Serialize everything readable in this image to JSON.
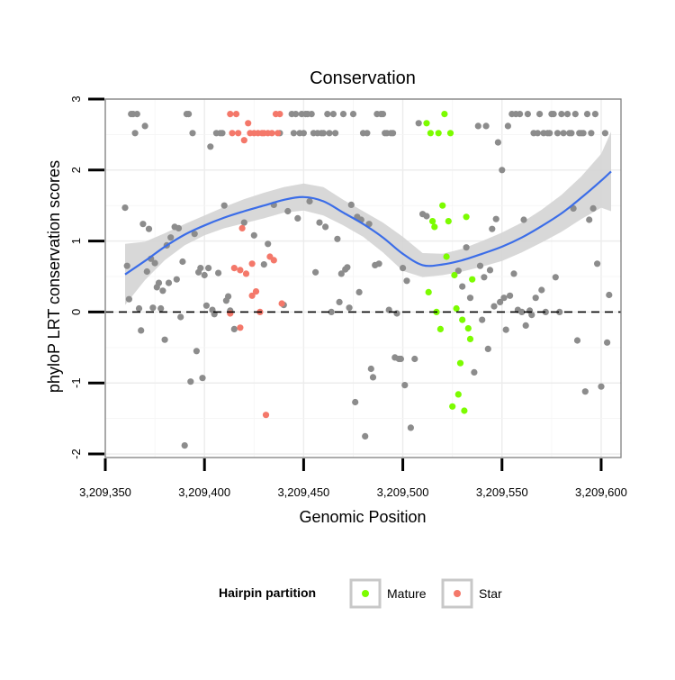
{
  "chart_data": {
    "type": "scatter",
    "title": "Conservation",
    "xlabel": "Genomic Position",
    "ylabel": "phyloP LRT conservation scores",
    "xlim": [
      3209350,
      3209610
    ],
    "ylim": [
      -2.05,
      3.0
    ],
    "x_ticks": [
      3209350,
      3209400,
      3209450,
      3209500,
      3209550,
      3209600
    ],
    "x_tick_labels": [
      "3,209,350",
      "3,209,400",
      "3,209,450",
      "3,209,500",
      "3,209,550",
      "3,209,600"
    ],
    "y_ticks": [
      -2,
      -1,
      0,
      1,
      2,
      3
    ],
    "y_tick_labels": [
      "-2",
      "-1",
      "0",
      "1",
      "2",
      "3"
    ],
    "grid": true,
    "reference_line": {
      "y": 0,
      "style": "dashed",
      "color": "#000000"
    },
    "legend": {
      "title": "Hairpin partition",
      "placement": "bottom",
      "entries": [
        {
          "label": "Mature",
          "color": "#7cfc00"
        },
        {
          "label": "Star",
          "color": "#f4786a"
        }
      ]
    },
    "colors": {
      "other": "#8c8c8c",
      "mature": "#7cfc00",
      "star": "#f4786a",
      "smooth_line": "#3b6de8",
      "smooth_band": "#d4d4d4"
    },
    "series": [
      {
        "name": "Other",
        "color": "#8c8c8c",
        "points": [
          [
            3209360,
            1.47
          ],
          [
            3209361,
            0.65
          ],
          [
            3209362,
            0.18
          ],
          [
            3209363,
            2.79
          ],
          [
            3209364,
            2.79
          ],
          [
            3209365,
            2.52
          ],
          [
            3209366,
            2.79
          ],
          [
            3209367,
            0.05
          ],
          [
            3209368,
            -0.26
          ],
          [
            3209369,
            1.24
          ],
          [
            3209370,
            2.62
          ],
          [
            3209371,
            0.57
          ],
          [
            3209372,
            1.17
          ],
          [
            3209373,
            0.75
          ],
          [
            3209374,
            0.06
          ],
          [
            3209375,
            0.69
          ],
          [
            3209376,
            0.35
          ],
          [
            3209377,
            0.41
          ],
          [
            3209378,
            0.05
          ],
          [
            3209379,
            0.3
          ],
          [
            3209380,
            -0.39
          ],
          [
            3209381,
            0.94
          ],
          [
            3209382,
            0.41
          ],
          [
            3209383,
            1.05
          ],
          [
            3209385,
            1.2
          ],
          [
            3209386,
            0.46
          ],
          [
            3209387,
            1.18
          ],
          [
            3209388,
            -0.07
          ],
          [
            3209389,
            0.71
          ],
          [
            3209390,
            -1.88
          ],
          [
            3209391,
            2.79
          ],
          [
            3209392,
            2.79
          ],
          [
            3209393,
            -0.98
          ],
          [
            3209394,
            2.52
          ],
          [
            3209395,
            1.1
          ],
          [
            3209396,
            -0.55
          ],
          [
            3209397,
            0.56
          ],
          [
            3209398,
            0.62
          ],
          [
            3209399,
            -0.93
          ],
          [
            3209400,
            0.52
          ],
          [
            3209401,
            0.09
          ],
          [
            3209402,
            0.62
          ],
          [
            3209403,
            2.33
          ],
          [
            3209404,
            0.03
          ],
          [
            3209405,
            -0.03
          ],
          [
            3209406,
            2.52
          ],
          [
            3209407,
            0.55
          ],
          [
            3209408,
            2.52
          ],
          [
            3209409,
            2.52
          ],
          [
            3209410,
            1.5
          ],
          [
            3209411,
            0.16
          ],
          [
            3209412,
            0.22
          ],
          [
            3209413,
            0.02
          ],
          [
            3209415,
            -0.24
          ],
          [
            3209420,
            1.26
          ],
          [
            3209425,
            1.08
          ],
          [
            3209430,
            0.67
          ],
          [
            3209432,
            0.96
          ],
          [
            3209435,
            1.51
          ],
          [
            3209438,
            2.52
          ],
          [
            3209440,
            0.1
          ],
          [
            3209442,
            1.42
          ],
          [
            3209444,
            2.79
          ],
          [
            3209445,
            2.52
          ],
          [
            3209446,
            2.79
          ],
          [
            3209447,
            1.32
          ],
          [
            3209448,
            2.52
          ],
          [
            3209449,
            2.79
          ],
          [
            3209450,
            2.52
          ],
          [
            3209451,
            2.79
          ],
          [
            3209452,
            2.79
          ],
          [
            3209453,
            1.56
          ],
          [
            3209454,
            2.79
          ],
          [
            3209455,
            2.52
          ],
          [
            3209456,
            0.56
          ],
          [
            3209457,
            2.52
          ],
          [
            3209458,
            1.26
          ],
          [
            3209459,
            2.52
          ],
          [
            3209460,
            2.52
          ],
          [
            3209461,
            1.2
          ],
          [
            3209462,
            2.79
          ],
          [
            3209463,
            2.52
          ],
          [
            3209464,
            0.0
          ],
          [
            3209465,
            2.79
          ],
          [
            3209466,
            2.52
          ],
          [
            3209467,
            1.03
          ],
          [
            3209468,
            0.14
          ],
          [
            3209469,
            0.54
          ],
          [
            3209470,
            2.79
          ],
          [
            3209471,
            0.6
          ],
          [
            3209472,
            0.63
          ],
          [
            3209473,
            0.06
          ],
          [
            3209474,
            1.51
          ],
          [
            3209475,
            2.79
          ],
          [
            3209476,
            -1.27
          ],
          [
            3209477,
            1.34
          ],
          [
            3209478,
            0.28
          ],
          [
            3209479,
            1.3
          ],
          [
            3209480,
            2.52
          ],
          [
            3209481,
            -1.75
          ],
          [
            3209482,
            2.52
          ],
          [
            3209483,
            1.24
          ],
          [
            3209484,
            -0.8
          ],
          [
            3209485,
            -0.92
          ],
          [
            3209486,
            0.66
          ],
          [
            3209487,
            2.79
          ],
          [
            3209488,
            0.68
          ],
          [
            3209489,
            2.79
          ],
          [
            3209490,
            2.79
          ],
          [
            3209491,
            2.52
          ],
          [
            3209492,
            2.52
          ],
          [
            3209493,
            0.03
          ],
          [
            3209494,
            2.52
          ],
          [
            3209495,
            2.52
          ],
          [
            3209496,
            -0.64
          ],
          [
            3209497,
            -0.02
          ],
          [
            3209498,
            -0.66
          ],
          [
            3209499,
            -0.66
          ],
          [
            3209500,
            0.62
          ],
          [
            3209501,
            -1.03
          ],
          [
            3209502,
            0.44
          ],
          [
            3209504,
            -1.63
          ],
          [
            3209506,
            -0.66
          ],
          [
            3209508,
            2.66
          ],
          [
            3209510,
            1.38
          ],
          [
            3209512,
            1.35
          ],
          [
            3209528,
            0.58
          ],
          [
            3209530,
            0.36
          ],
          [
            3209532,
            0.91
          ],
          [
            3209534,
            0.2
          ],
          [
            3209536,
            -0.85
          ],
          [
            3209538,
            2.62
          ],
          [
            3209539,
            0.65
          ],
          [
            3209540,
            -0.11
          ],
          [
            3209541,
            0.49
          ],
          [
            3209542,
            2.62
          ],
          [
            3209543,
            -0.52
          ],
          [
            3209544,
            0.59
          ],
          [
            3209545,
            1.17
          ],
          [
            3209546,
            0.08
          ],
          [
            3209547,
            1.31
          ],
          [
            3209548,
            2.39
          ],
          [
            3209549,
            0.14
          ],
          [
            3209550,
            2.0
          ],
          [
            3209551,
            0.2
          ],
          [
            3209552,
            -0.25
          ],
          [
            3209553,
            2.62
          ],
          [
            3209554,
            0.23
          ],
          [
            3209555,
            2.79
          ],
          [
            3209556,
            0.54
          ],
          [
            3209557,
            2.79
          ],
          [
            3209558,
            0.03
          ],
          [
            3209559,
            2.79
          ],
          [
            3209560,
            0.0
          ],
          [
            3209561,
            1.3
          ],
          [
            3209562,
            -0.19
          ],
          [
            3209563,
            2.79
          ],
          [
            3209564,
            0.02
          ],
          [
            3209565,
            -0.04
          ],
          [
            3209566,
            2.52
          ],
          [
            3209567,
            0.2
          ],
          [
            3209568,
            2.52
          ],
          [
            3209569,
            2.79
          ],
          [
            3209570,
            0.31
          ],
          [
            3209571,
            2.52
          ],
          [
            3209572,
            0.0
          ],
          [
            3209573,
            2.52
          ],
          [
            3209574,
            2.52
          ],
          [
            3209575,
            2.79
          ],
          [
            3209576,
            2.79
          ],
          [
            3209577,
            0.49
          ],
          [
            3209578,
            2.52
          ],
          [
            3209579,
            0.0
          ],
          [
            3209580,
            2.79
          ],
          [
            3209581,
            2.52
          ],
          [
            3209583,
            2.79
          ],
          [
            3209584,
            2.52
          ],
          [
            3209585,
            2.52
          ],
          [
            3209586,
            1.46
          ],
          [
            3209587,
            2.79
          ],
          [
            3209588,
            -0.4
          ],
          [
            3209589,
            2.52
          ],
          [
            3209590,
            2.52
          ],
          [
            3209591,
            2.52
          ],
          [
            3209592,
            -1.12
          ],
          [
            3209593,
            2.79
          ],
          [
            3209594,
            1.3
          ],
          [
            3209595,
            2.52
          ],
          [
            3209596,
            1.46
          ],
          [
            3209597,
            2.79
          ],
          [
            3209598,
            0.68
          ],
          [
            3209600,
            -1.05
          ],
          [
            3209602,
            2.52
          ],
          [
            3209603,
            -0.43
          ],
          [
            3209604,
            0.24
          ]
        ]
      },
      {
        "name": "Mature",
        "color": "#7cfc00",
        "points": [
          [
            3209512,
            2.66
          ],
          [
            3209513,
            0.28
          ],
          [
            3209514,
            2.52
          ],
          [
            3209515,
            1.28
          ],
          [
            3209516,
            1.2
          ],
          [
            3209517,
            0.0
          ],
          [
            3209518,
            2.52
          ],
          [
            3209519,
            -0.24
          ],
          [
            3209520,
            1.5
          ],
          [
            3209521,
            2.79
          ],
          [
            3209522,
            0.78
          ],
          [
            3209523,
            1.28
          ],
          [
            3209524,
            2.52
          ],
          [
            3209525,
            -1.33
          ],
          [
            3209526,
            0.52
          ],
          [
            3209527,
            0.05
          ],
          [
            3209528,
            -1.16
          ],
          [
            3209529,
            -0.72
          ],
          [
            3209530,
            -0.11
          ],
          [
            3209531,
            -1.39
          ],
          [
            3209532,
            1.34
          ],
          [
            3209533,
            -0.23
          ],
          [
            3209534,
            -0.38
          ],
          [
            3209535,
            0.46
          ]
        ]
      },
      {
        "name": "Star",
        "color": "#f4786a",
        "points": [
          [
            3209413,
            2.79
          ],
          [
            3209414,
            2.52
          ],
          [
            3209415,
            0.62
          ],
          [
            3209416,
            2.79
          ],
          [
            3209417,
            2.52
          ],
          [
            3209418,
            0.59
          ],
          [
            3209419,
            1.18
          ],
          [
            3209420,
            2.42
          ],
          [
            3209421,
            0.54
          ],
          [
            3209422,
            2.66
          ],
          [
            3209423,
            2.52
          ],
          [
            3209424,
            0.23
          ],
          [
            3209425,
            2.52
          ],
          [
            3209426,
            0.29
          ],
          [
            3209427,
            2.52
          ],
          [
            3209428,
            0.0
          ],
          [
            3209429,
            2.52
          ],
          [
            3209430,
            2.52
          ],
          [
            3209431,
            -1.45
          ],
          [
            3209432,
            2.52
          ],
          [
            3209433,
            0.78
          ],
          [
            3209434,
            2.52
          ],
          [
            3209435,
            0.73
          ],
          [
            3209436,
            2.79
          ],
          [
            3209437,
            2.52
          ],
          [
            3209438,
            2.79
          ],
          [
            3209439,
            0.12
          ],
          [
            3209413,
            -0.02
          ],
          [
            3209418,
            -0.22
          ],
          [
            3209424,
            0.68
          ]
        ]
      }
    ],
    "smooth_fit": {
      "method": "loess",
      "x": [
        3209360,
        3209370,
        3209380,
        3209390,
        3209400,
        3209410,
        3209420,
        3209430,
        3209440,
        3209450,
        3209460,
        3209470,
        3209480,
        3209490,
        3209500,
        3209510,
        3209520,
        3209530,
        3209540,
        3209550,
        3209560,
        3209570,
        3209580,
        3209590,
        3209600,
        3209605
      ],
      "y": [
        0.53,
        0.72,
        0.92,
        1.09,
        1.22,
        1.33,
        1.42,
        1.5,
        1.58,
        1.62,
        1.56,
        1.4,
        1.24,
        1.05,
        0.82,
        0.66,
        0.67,
        0.73,
        0.82,
        0.92,
        1.05,
        1.21,
        1.39,
        1.61,
        1.85,
        1.98
      ],
      "lower": [
        0.1,
        0.45,
        0.73,
        0.94,
        1.08,
        1.18,
        1.25,
        1.32,
        1.4,
        1.43,
        1.36,
        1.22,
        1.06,
        0.84,
        0.58,
        0.49,
        0.52,
        0.57,
        0.64,
        0.72,
        0.84,
        0.98,
        1.13,
        1.31,
        1.47,
        1.42
      ],
      "upper": [
        0.96,
        0.99,
        1.11,
        1.24,
        1.36,
        1.48,
        1.59,
        1.68,
        1.76,
        1.81,
        1.76,
        1.58,
        1.42,
        1.26,
        1.06,
        0.83,
        0.82,
        0.89,
        1.0,
        1.12,
        1.26,
        1.44,
        1.65,
        1.91,
        2.23,
        2.54
      ]
    }
  }
}
